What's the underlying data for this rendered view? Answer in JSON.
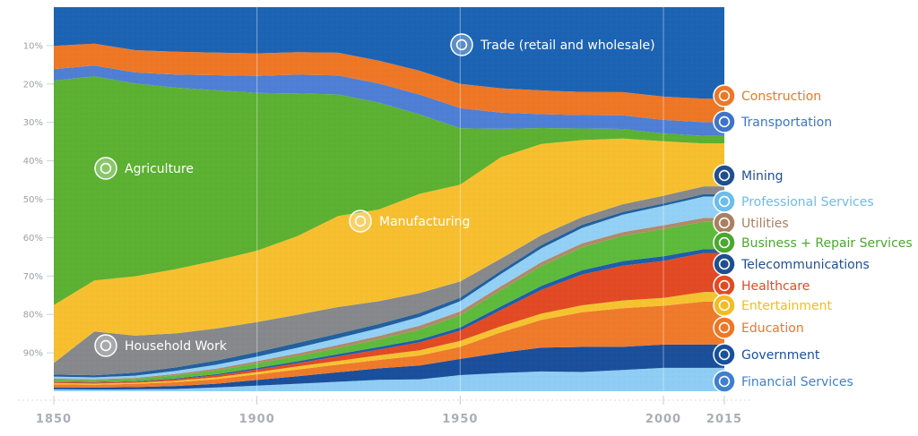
{
  "chart_data": {
    "type": "area",
    "stacked": true,
    "percent_stacked": true,
    "title": "",
    "xlabel": "",
    "ylabel": "",
    "x_ticks": [
      "1850",
      "1900",
      "1950",
      "2000",
      "2015"
    ],
    "y_ticks": [
      "10%",
      "20%",
      "30%",
      "40%",
      "50%",
      "60%",
      "70%",
      "80%",
      "90%"
    ],
    "xlim": [
      1850,
      2015
    ],
    "ylim": [
      0,
      100
    ],
    "grid": "vertical lines at 1900, 1950, 2000",
    "legend": "right side labels",
    "x": [
      1850,
      1860,
      1870,
      1880,
      1890,
      1900,
      1910,
      1920,
      1930,
      1940,
      1950,
      1960,
      1970,
      1980,
      1990,
      2000,
      2010,
      2015
    ],
    "series_bottom_to_top": [
      {
        "name": "Financial Services",
        "color": "#8fcdf5",
        "values": [
          0.5,
          0.5,
          0.5,
          0.6,
          1,
          1.5,
          2,
          2.5,
          3,
          3,
          4,
          4.5,
          5,
          5,
          5.5,
          6,
          6,
          6
        ]
      },
      {
        "name": "Government",
        "color": "#1a4f9c",
        "values": [
          0.5,
          0.5,
          0.6,
          0.8,
          1,
          1.5,
          2,
          2.5,
          3,
          3.5,
          4,
          5,
          6,
          6.5,
          6,
          6,
          6,
          6
        ]
      },
      {
        "name": "Education",
        "color": "#ef7a2b",
        "values": [
          0.8,
          0.8,
          0.9,
          1,
          1.2,
          1.5,
          1.8,
          2,
          2.2,
          2.5,
          3,
          5,
          7,
          9,
          10,
          10,
          11,
          11
        ]
      },
      {
        "name": "Entertainment",
        "color": "#f5c330",
        "values": [
          0.3,
          0.3,
          0.3,
          0.4,
          0.5,
          0.6,
          0.8,
          1,
          1.2,
          1.3,
          1.5,
          1.5,
          1.6,
          1.8,
          2,
          2,
          2.5,
          2.5
        ]
      },
      {
        "name": "Healthcare",
        "color": "#e24a24",
        "values": [
          0.3,
          0.3,
          0.3,
          0.4,
          0.5,
          0.7,
          0.9,
          1.2,
          1.5,
          2,
          2.5,
          4,
          6,
          8,
          9,
          9.5,
          10,
          10
        ]
      },
      {
        "name": "Telecommunications",
        "color": "#1f5ea8",
        "values": [
          0.1,
          0.1,
          0.1,
          0.2,
          0.3,
          0.4,
          0.5,
          0.6,
          0.7,
          0.7,
          0.8,
          0.9,
          1,
          1.1,
          1.2,
          1.2,
          1,
          1
        ]
      },
      {
        "name": "Business + Repair Services",
        "color": "#5dba3b",
        "values": [
          0.5,
          0.5,
          0.6,
          0.8,
          1,
          1.2,
          1.4,
          1.6,
          2,
          2.5,
          3,
          4,
          5,
          6,
          6.5,
          7,
          7,
          7
        ]
      },
      {
        "name": "Utilities",
        "color": "#b08a6a",
        "values": [
          0.3,
          0.3,
          0.3,
          0.4,
          0.5,
          0.6,
          0.7,
          0.8,
          0.9,
          1,
          1,
          1,
          1,
          1,
          1,
          1,
          1,
          1
        ]
      },
      {
        "name": "Professional Services",
        "color": "#93d0f5",
        "values": [
          0.5,
          0.5,
          0.6,
          0.8,
          1,
          1.2,
          1.5,
          1.8,
          2,
          2.2,
          2.5,
          3,
          3.5,
          4,
          4.5,
          5,
          5.5,
          5.5
        ]
      },
      {
        "name": "Mining",
        "color": "#22609e",
        "values": [
          0.5,
          0.6,
          0.8,
          0.9,
          1.1,
          1.2,
          1.3,
          1.2,
          1.1,
          1,
          0.9,
          0.8,
          0.8,
          0.8,
          0.7,
          0.6,
          0.6,
          0.6
        ]
      },
      {
        "name": "Household Work",
        "color": "#86888b",
        "values": [
          3,
          12,
          10,
          9,
          8.5,
          8,
          7.5,
          7,
          6,
          5,
          4,
          3,
          2.5,
          2,
          2,
          2,
          2,
          2
        ]
      },
      {
        "name": "Manufacturing",
        "color": "#f7bf2f",
        "values": [
          15,
          14,
          16,
          17,
          18,
          19,
          21,
          24,
          24,
          25,
          24,
          25,
          23,
          20,
          17,
          14,
          11,
          11
        ]
      },
      {
        "name": "Agriculture",
        "color": "#5cb032",
        "values": [
          58,
          56,
          52,
          48,
          45,
          42,
          38,
          32,
          28,
          20,
          14,
          7,
          4,
          3,
          2.5,
          2,
          2,
          2
        ]
      },
      {
        "name": "Transportation",
        "color": "#4f7fd4",
        "values": [
          3,
          3,
          3,
          3.5,
          4,
          4.5,
          5,
          5,
          5,
          5,
          5,
          4,
          3.5,
          3.5,
          3.5,
          3.5,
          3.5,
          3.5
        ]
      },
      {
        "name": "Construction",
        "color": "#ee7726",
        "values": [
          6,
          6,
          6,
          6,
          6,
          6,
          6,
          6,
          6,
          6,
          6,
          6,
          6,
          6,
          6,
          6,
          6,
          6
        ]
      },
      {
        "name": "Trade (retail and wholesale)",
        "color": "#1d63b4",
        "values": [
          10,
          10,
          11.6,
          11.8,
          12,
          12.3,
          12,
          12,
          14,
          16,
          19,
          20,
          21,
          22,
          22,
          23,
          23.5,
          23.5
        ]
      }
    ],
    "inline_labels": [
      {
        "name": "Trade (retail and wholesale)",
        "icon": "cart-icon"
      },
      {
        "name": "Agriculture",
        "icon": "wheat-icon"
      },
      {
        "name": "Manufacturing",
        "icon": "factory-icon"
      },
      {
        "name": "Household Work",
        "icon": "house-icon"
      }
    ],
    "right_labels": [
      {
        "name": "Construction",
        "color": "#ee7726",
        "icon": "crane-icon"
      },
      {
        "name": "Transportation",
        "color": "#3f74c8",
        "icon": "truck-icon"
      },
      {
        "name": "Mining",
        "color": "#1f4f8e",
        "icon": "pickaxe-icon"
      },
      {
        "name": "Professional Services",
        "color": "#6cbcec",
        "icon": "briefcase-icon"
      },
      {
        "name": "Utilities",
        "color": "#a98060",
        "icon": "faucet-icon"
      },
      {
        "name": "Business + Repair Services",
        "color": "#4aa82e",
        "icon": "wrench-icon"
      },
      {
        "name": "Telecommunications",
        "color": "#1f4f8e",
        "icon": "satellite-icon"
      },
      {
        "name": "Healthcare",
        "color": "#e24a24",
        "icon": "medical-cross-icon"
      },
      {
        "name": "Entertainment",
        "color": "#f2bc22",
        "icon": "theater-icon"
      },
      {
        "name": "Education",
        "color": "#ee7726",
        "icon": "graduation-cap-icon"
      },
      {
        "name": "Government",
        "color": "#1a4f9c",
        "icon": "capitol-icon"
      },
      {
        "name": "Financial Services",
        "color": "#3f7fd0",
        "icon": "money-bag-icon"
      }
    ]
  }
}
